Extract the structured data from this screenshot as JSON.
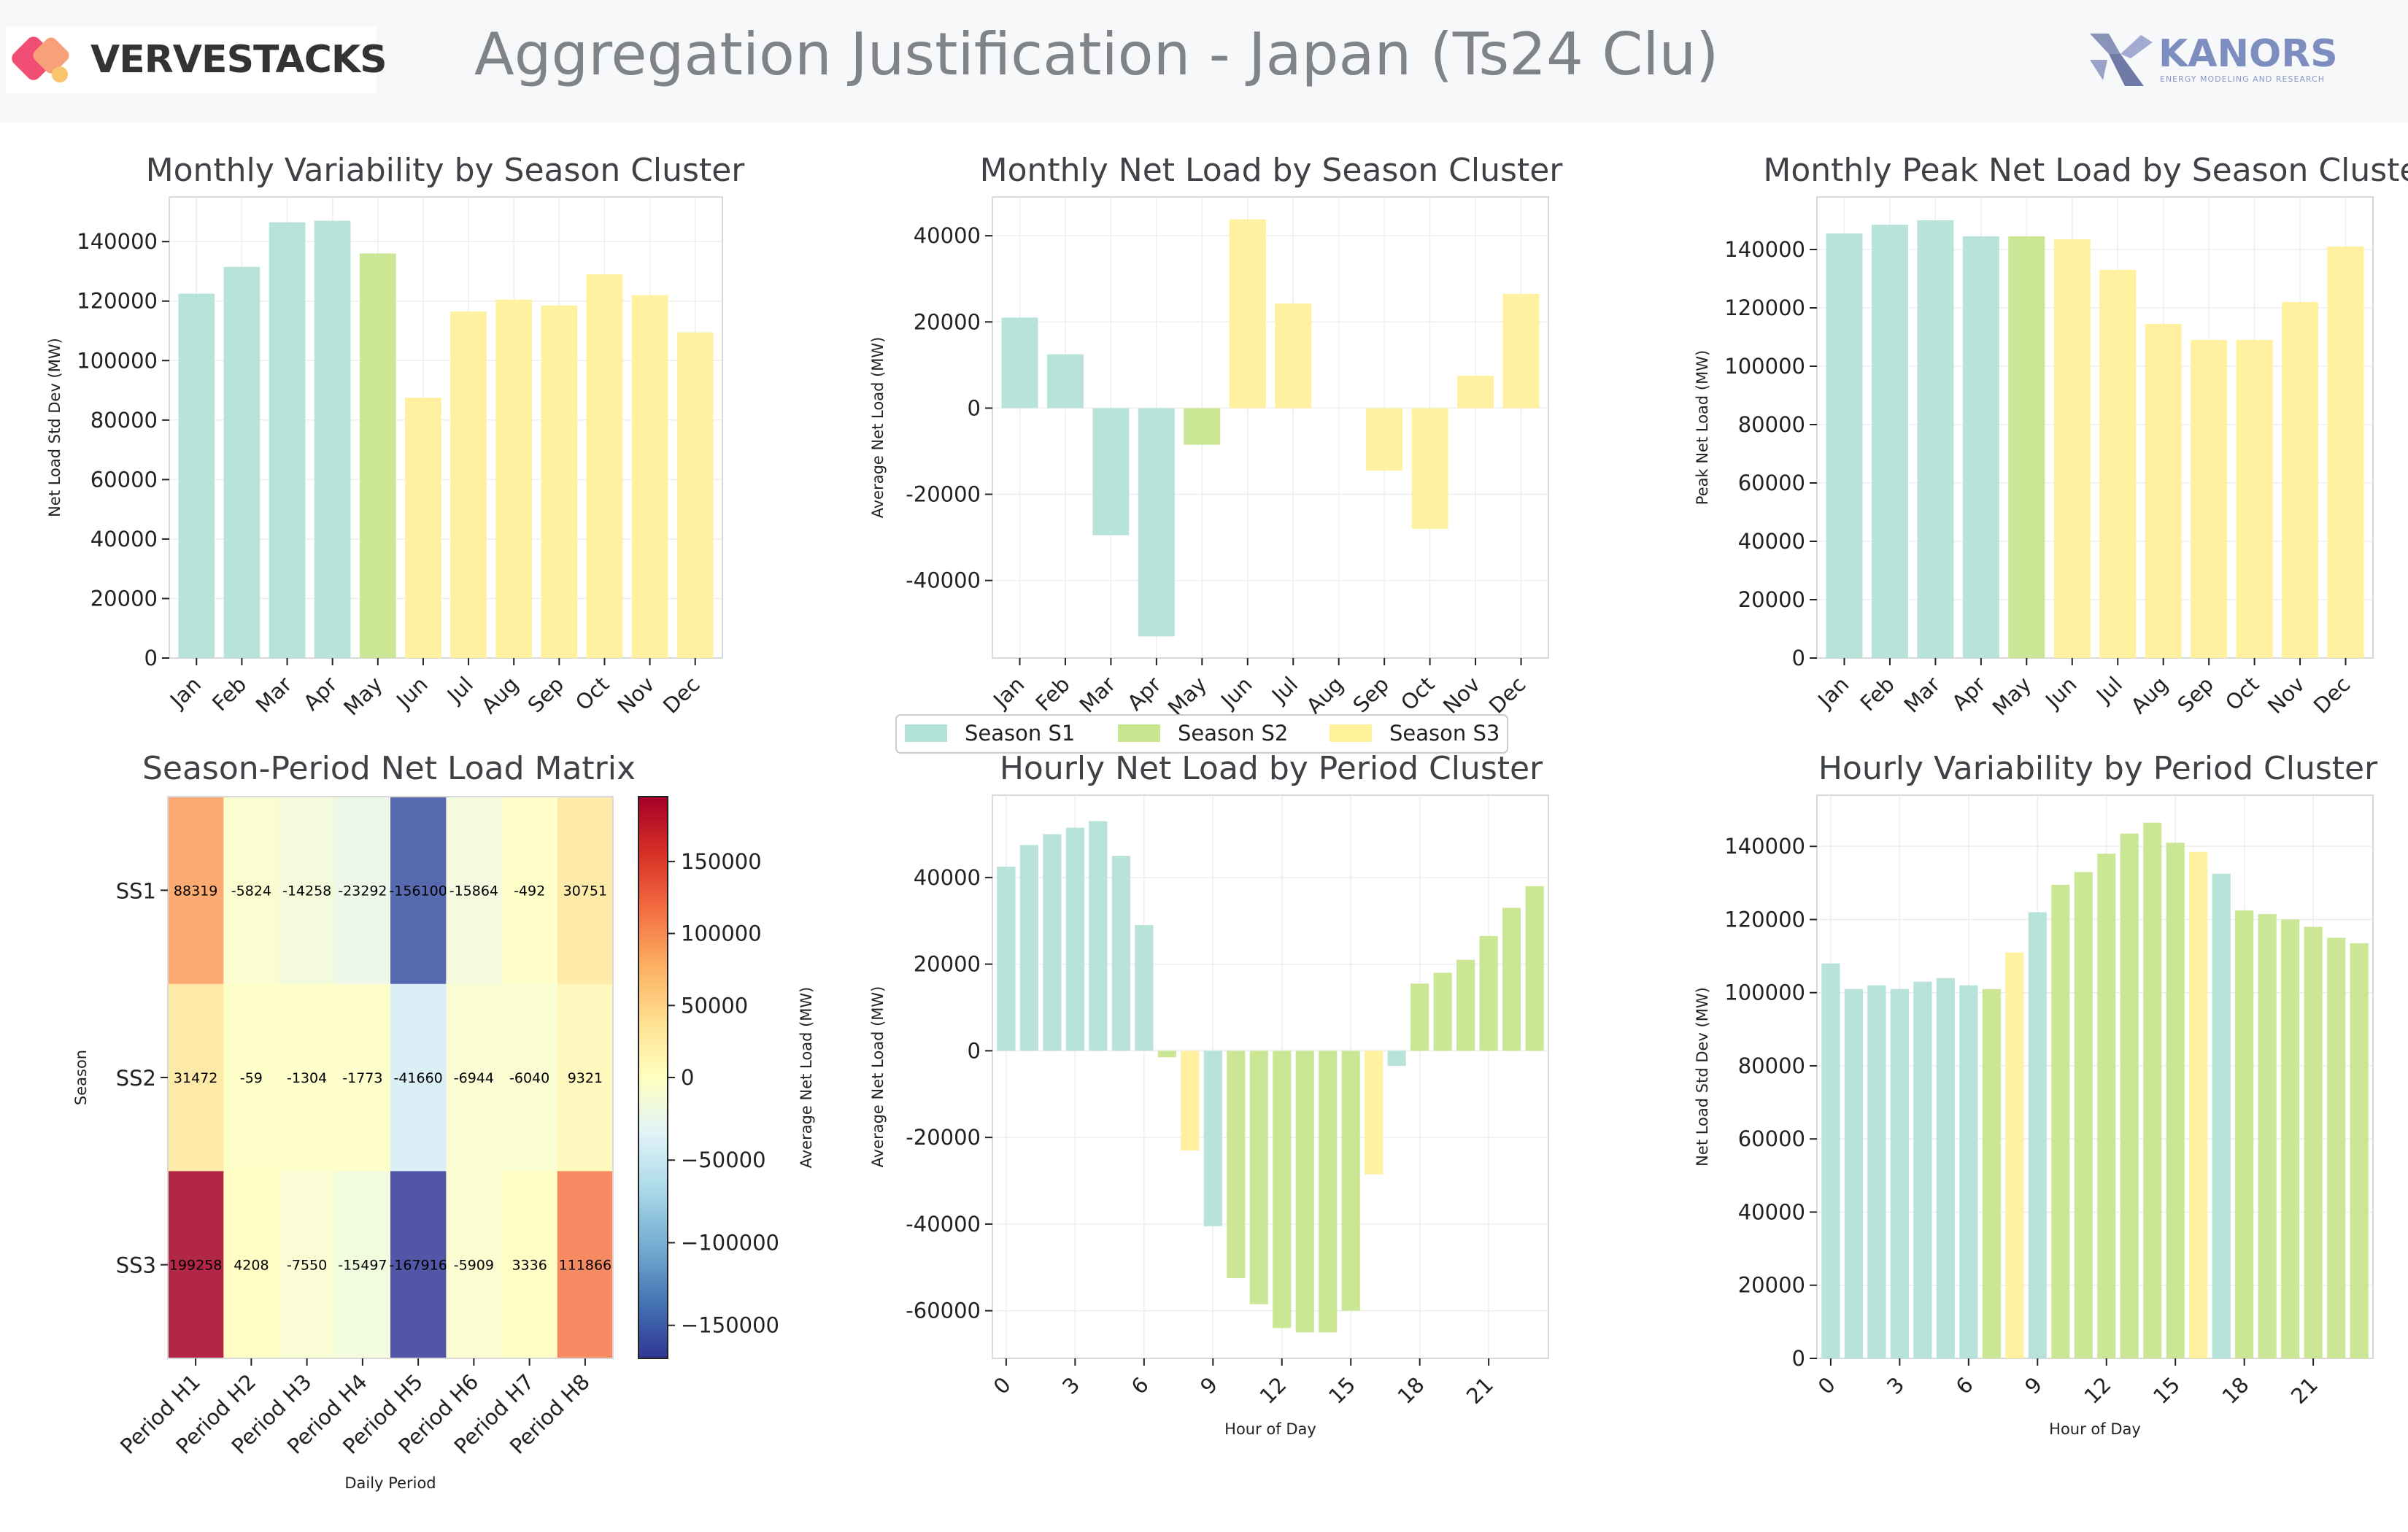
{
  "header": {
    "title": "Aggregation Justification - Japan (Ts24 Clu)",
    "left_brand": "VERVESTACKS",
    "right_brand": "KANORS",
    "right_tagline": "ENERGY MODELING AND RESEARCH"
  },
  "colors": {
    "S1": "#b3e2d8",
    "S2": "#c8e68f",
    "S3": "#fff09a"
  },
  "legend": {
    "items": [
      "Season S1",
      "Season S2",
      "Season S3"
    ]
  },
  "chart_data": [
    {
      "id": "monthly-variability",
      "type": "bar",
      "title": "Monthly Variability by Season Cluster",
      "xlabel": "",
      "ylabel": "Net Load Std Dev (MW)",
      "categories": [
        "Jan",
        "Feb",
        "Mar",
        "Apr",
        "May",
        "Jun",
        "Jul",
        "Aug",
        "Sep",
        "Oct",
        "Nov",
        "Dec"
      ],
      "values": [
        122500,
        131500,
        146500,
        147000,
        136000,
        87500,
        116500,
        120500,
        118500,
        129000,
        122000,
        109500
      ],
      "clusters": [
        "S1",
        "S1",
        "S1",
        "S1",
        "S2",
        "S3",
        "S3",
        "S3",
        "S3",
        "S3",
        "S3",
        "S3"
      ],
      "ylim": [
        0,
        155000
      ],
      "yticks": [
        0,
        20000,
        40000,
        60000,
        80000,
        100000,
        120000,
        140000
      ]
    },
    {
      "id": "monthly-net-load",
      "type": "bar",
      "title": "Monthly Net Load by Season Cluster",
      "xlabel": "",
      "ylabel": "Average Net Load (MW)",
      "categories": [
        "Jan",
        "Feb",
        "Mar",
        "Apr",
        "May",
        "Jun",
        "Jul",
        "Aug",
        "Sep",
        "Oct",
        "Nov",
        "Dec"
      ],
      "values": [
        21000,
        12500,
        -29500,
        -53000,
        -8500,
        43800,
        24300,
        0,
        -14500,
        -28000,
        7500,
        26500
      ],
      "clusters": [
        "S1",
        "S1",
        "S1",
        "S1",
        "S2",
        "S3",
        "S3",
        "S3",
        "S3",
        "S3",
        "S3",
        "S3"
      ],
      "ylim": [
        -58000,
        49000
      ],
      "yticks": [
        -40000,
        -20000,
        0,
        20000,
        40000
      ]
    },
    {
      "id": "monthly-peak-net-load",
      "type": "bar",
      "title": "Monthly Peak Net Load by Season Cluster",
      "xlabel": "",
      "ylabel": "Peak Net Load (MW)",
      "categories": [
        "Jan",
        "Feb",
        "Mar",
        "Apr",
        "May",
        "Jun",
        "Jul",
        "Aug",
        "Sep",
        "Oct",
        "Nov",
        "Dec"
      ],
      "values": [
        145500,
        148500,
        150000,
        144500,
        144500,
        143500,
        133000,
        114500,
        109000,
        109000,
        122000,
        141000
      ],
      "clusters": [
        "S1",
        "S1",
        "S1",
        "S1",
        "S2",
        "S3",
        "S3",
        "S3",
        "S3",
        "S3",
        "S3",
        "S3"
      ],
      "ylim": [
        0,
        158000
      ],
      "yticks": [
        0,
        20000,
        40000,
        60000,
        80000,
        100000,
        120000,
        140000
      ]
    },
    {
      "id": "season-period-matrix",
      "type": "heatmap",
      "title": "Season-Period Net Load Matrix",
      "xlabel": "Daily Period",
      "ylabel": "Season",
      "colorbar_label": "Average Net Load (MW)",
      "x_categories": [
        "Period H1",
        "Period H2",
        "Period H3",
        "Period H4",
        "Period H5",
        "Period H6",
        "Period H7",
        "Period H8"
      ],
      "y_categories": [
        "SS1",
        "SS2",
        "SS3"
      ],
      "values": [
        [
          88319,
          -5824,
          -14258,
          -23292,
          -156100,
          -15864,
          -492,
          30751
        ],
        [
          31472,
          -59,
          -1304,
          -1773,
          -41660,
          -6944,
          -6040,
          9321
        ],
        [
          199258,
          4208,
          -7550,
          -15497,
          -167916,
          -5909,
          3336,
          111866
        ]
      ],
      "cell_labels": [
        [
          "88319",
          "-5824",
          "-14258",
          "-23292",
          "-156100",
          "-15864",
          "-492",
          "30751"
        ],
        [
          "31472",
          "-59",
          "-1304",
          "-1773",
          "-41660",
          "-6944",
          "-6040",
          "9321"
        ],
        [
          "199258",
          "4208",
          "-7550",
          "-15497",
          "-167916",
          "-5909",
          "3336",
          "111866"
        ]
      ],
      "vmin": -170000,
      "vmax": 195000,
      "colorbar_ticks": [
        -150000,
        -100000,
        -50000,
        0,
        50000,
        100000,
        150000
      ]
    },
    {
      "id": "hourly-net-load",
      "type": "bar",
      "title": "Hourly Net Load by Period Cluster",
      "xlabel": "Hour of Day",
      "ylabel": "Average Net Load (MW)",
      "categories": [
        0,
        1,
        2,
        3,
        4,
        5,
        6,
        7,
        8,
        9,
        10,
        11,
        12,
        13,
        14,
        15,
        16,
        17,
        18,
        19,
        20,
        21,
        22,
        23
      ],
      "xtick_labels": [
        "0",
        "3",
        "6",
        "9",
        "12",
        "15",
        "18",
        "21"
      ],
      "values": [
        42500,
        47500,
        50000,
        51500,
        53000,
        45000,
        29000,
        -1500,
        -23000,
        -40500,
        -52500,
        -58500,
        -64000,
        -65000,
        -65000,
        -60000,
        -28500,
        -3500,
        15500,
        18000,
        21000,
        26500,
        33000,
        38000
      ],
      "clusters": [
        "S1",
        "S1",
        "S1",
        "S1",
        "S1",
        "S1",
        "S1",
        "S2",
        "S3",
        "S1",
        "S2",
        "S2",
        "S2",
        "S2",
        "S2",
        "S2",
        "S3",
        "S1",
        "S2",
        "S2",
        "S2",
        "S2",
        "S2",
        "S2"
      ],
      "ylim": [
        -71000,
        59000
      ],
      "yticks": [
        -60000,
        -40000,
        -20000,
        0,
        20000,
        40000
      ]
    },
    {
      "id": "hourly-variability",
      "type": "bar",
      "title": "Hourly Variability by Period Cluster",
      "xlabel": "Hour of Day",
      "ylabel": "Net Load Std Dev (MW)",
      "categories": [
        0,
        1,
        2,
        3,
        4,
        5,
        6,
        7,
        8,
        9,
        10,
        11,
        12,
        13,
        14,
        15,
        16,
        17,
        18,
        19,
        20,
        21,
        22,
        23
      ],
      "xtick_labels": [
        "0",
        "3",
        "6",
        "9",
        "12",
        "15",
        "18",
        "21"
      ],
      "values": [
        108000,
        101000,
        102000,
        101000,
        103000,
        104000,
        102000,
        101000,
        111000,
        122000,
        129500,
        133000,
        138000,
        143500,
        146500,
        141000,
        138500,
        132500,
        122500,
        121500,
        120000,
        118000,
        115000,
        113500
      ],
      "clusters": [
        "S1",
        "S1",
        "S1",
        "S1",
        "S1",
        "S1",
        "S1",
        "S2",
        "S3",
        "S1",
        "S2",
        "S2",
        "S2",
        "S2",
        "S2",
        "S2",
        "S3",
        "S1",
        "S2",
        "S2",
        "S2",
        "S2",
        "S2",
        "S2"
      ],
      "ylim": [
        0,
        154000
      ],
      "yticks": [
        0,
        20000,
        40000,
        60000,
        80000,
        100000,
        120000,
        140000
      ]
    }
  ]
}
